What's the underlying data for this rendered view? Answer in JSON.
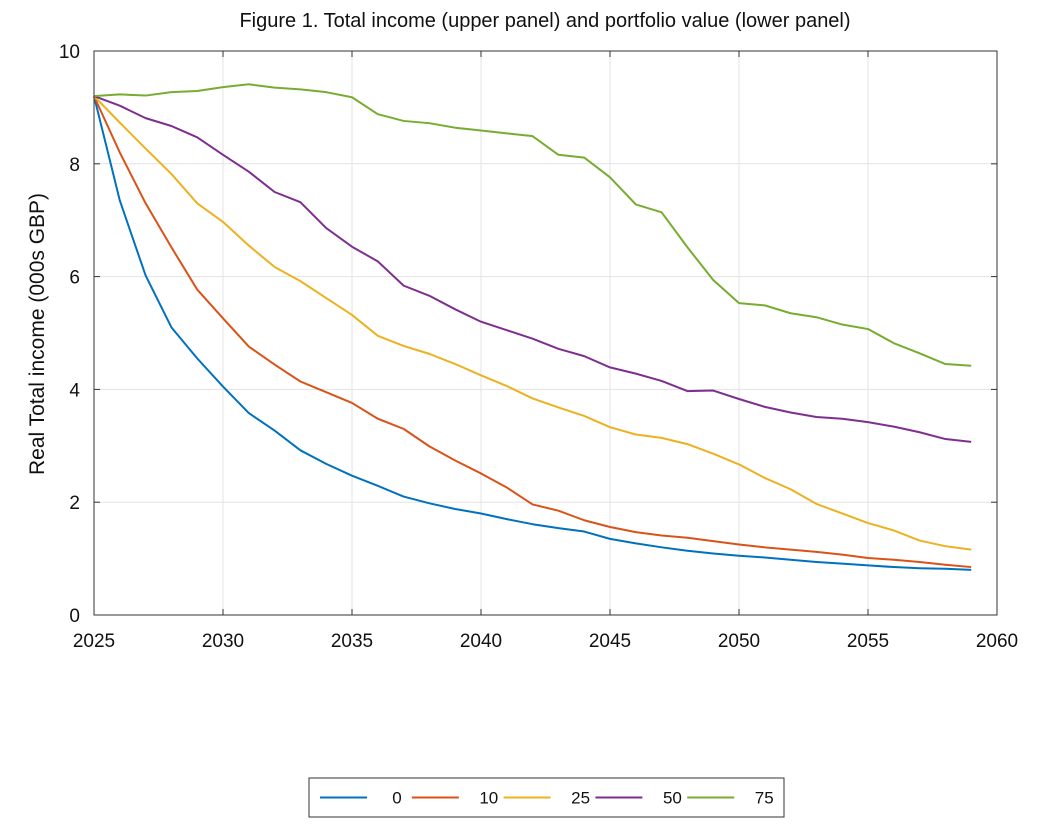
{
  "chart_data": {
    "type": "line",
    "title": "Figure 1. Total income (upper panel) and portfolio value (lower panel)",
    "xlabel": "",
    "ylabel": "Real Total income (000s GBP)",
    "xlim": [
      2025,
      2060
    ],
    "ylim": [
      0,
      10
    ],
    "xticks": [
      "2025",
      "2030",
      "2035",
      "2040",
      "2045",
      "2050",
      "2055",
      "2060"
    ],
    "yticks": [
      "0",
      "2",
      "4",
      "6",
      "8",
      "10"
    ],
    "grid": true,
    "legend_position": "bottom-center",
    "x": [
      2025,
      2026,
      2027,
      2028,
      2029,
      2030,
      2031,
      2032,
      2033,
      2034,
      2035,
      2036,
      2037,
      2038,
      2039,
      2040,
      2041,
      2042,
      2043,
      2044,
      2045,
      2046,
      2047,
      2048,
      2049,
      2050,
      2051,
      2052,
      2053,
      2054,
      2055,
      2056,
      2057,
      2058,
      2059
    ],
    "series": [
      {
        "name": "0",
        "color": "#0072BD",
        "values": [
          9.2,
          7.35,
          6.02,
          5.1,
          4.55,
          4.05,
          3.58,
          3.27,
          2.92,
          2.68,
          2.47,
          2.29,
          2.1,
          1.98,
          1.88,
          1.8,
          1.7,
          1.61,
          1.54,
          1.48,
          1.35,
          1.27,
          1.2,
          1.14,
          1.09,
          1.05,
          1.02,
          0.98,
          0.94,
          0.91,
          0.88,
          0.85,
          0.83,
          0.82,
          0.8
        ]
      },
      {
        "name": "10",
        "color": "#D95319",
        "values": [
          9.2,
          8.2,
          7.3,
          6.52,
          5.77,
          5.26,
          4.76,
          4.44,
          4.14,
          3.95,
          3.76,
          3.48,
          3.3,
          2.99,
          2.74,
          2.51,
          2.26,
          1.96,
          1.85,
          1.68,
          1.56,
          1.47,
          1.41,
          1.37,
          1.31,
          1.25,
          1.2,
          1.16,
          1.12,
          1.07,
          1.01,
          0.98,
          0.94,
          0.89,
          0.85
        ]
      },
      {
        "name": "25",
        "color": "#EDB120",
        "values": [
          9.2,
          8.73,
          8.27,
          7.82,
          7.3,
          6.97,
          6.55,
          6.17,
          5.92,
          5.62,
          5.32,
          4.95,
          4.77,
          4.63,
          4.45,
          4.25,
          4.06,
          3.84,
          3.68,
          3.53,
          3.33,
          3.2,
          3.14,
          3.03,
          2.86,
          2.67,
          2.43,
          2.23,
          1.97,
          1.8,
          1.63,
          1.5,
          1.32,
          1.22,
          1.16
        ]
      },
      {
        "name": "50",
        "color": "#7E2F8E",
        "values": [
          9.2,
          9.03,
          8.81,
          8.67,
          8.47,
          8.16,
          7.86,
          7.5,
          7.32,
          6.86,
          6.53,
          6.27,
          5.84,
          5.66,
          5.42,
          5.2,
          5.05,
          4.9,
          4.72,
          4.59,
          4.39,
          4.28,
          4.15,
          3.97,
          3.98,
          3.83,
          3.69,
          3.59,
          3.51,
          3.48,
          3.42,
          3.34,
          3.24,
          3.12,
          3.07
        ]
      },
      {
        "name": "75",
        "color": "#77AC30",
        "values": [
          9.2,
          9.23,
          9.21,
          9.27,
          9.29,
          9.36,
          9.41,
          9.35,
          9.32,
          9.27,
          9.18,
          8.88,
          8.76,
          8.72,
          8.64,
          8.59,
          8.54,
          8.49,
          8.16,
          8.11,
          7.76,
          7.28,
          7.14,
          6.52,
          5.94,
          5.53,
          5.49,
          5.35,
          5.28,
          5.15,
          5.07,
          4.82,
          4.64,
          4.45,
          4.42
        ]
      }
    ]
  }
}
